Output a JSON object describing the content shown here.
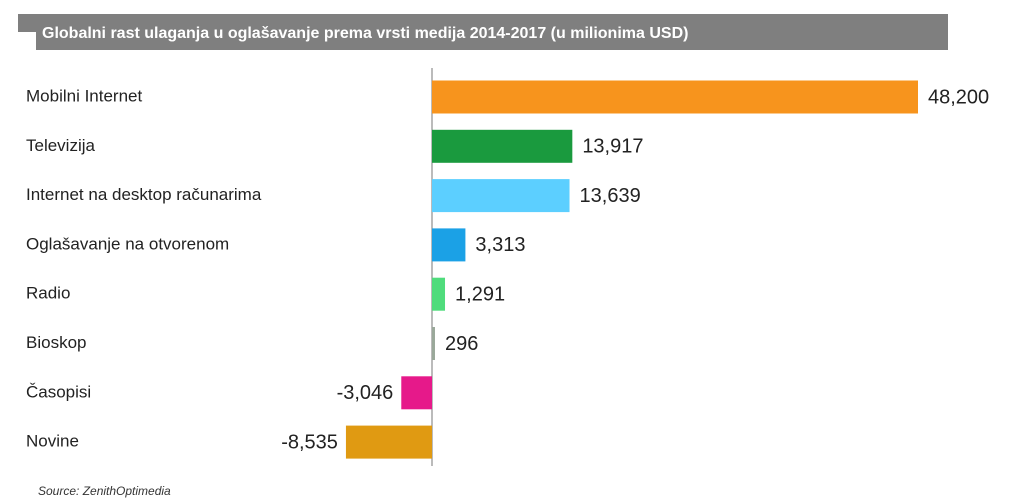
{
  "chart_data": {
    "type": "bar",
    "orientation": "horizontal",
    "title": "Globalni rast ulaganja u oglašavanje prema vrsti medija 2014-2017 (u milionima USD)",
    "categories": [
      "Mobilni Internet",
      "Televizija",
      "Internet na desktop računarima",
      "Oglašavanje na otvorenom",
      "Radio",
      "Bioskop",
      "Časopisi",
      "Novine"
    ],
    "values": [
      48200,
      13917,
      13639,
      3313,
      1291,
      296,
      -3046,
      -8535
    ],
    "value_labels": [
      "48,200",
      "13,917",
      "13,639",
      "3,313",
      "1,291",
      "296",
      "-3,046",
      "-8,535"
    ],
    "colors": [
      "#f7941d",
      "#1a9a3e",
      "#5ccfff",
      "#1ba1e6",
      "#4fdc7c",
      "#9aa89a",
      "#e6198a",
      "#e09a12"
    ],
    "source": "Source: ZenithOptimedia"
  }
}
